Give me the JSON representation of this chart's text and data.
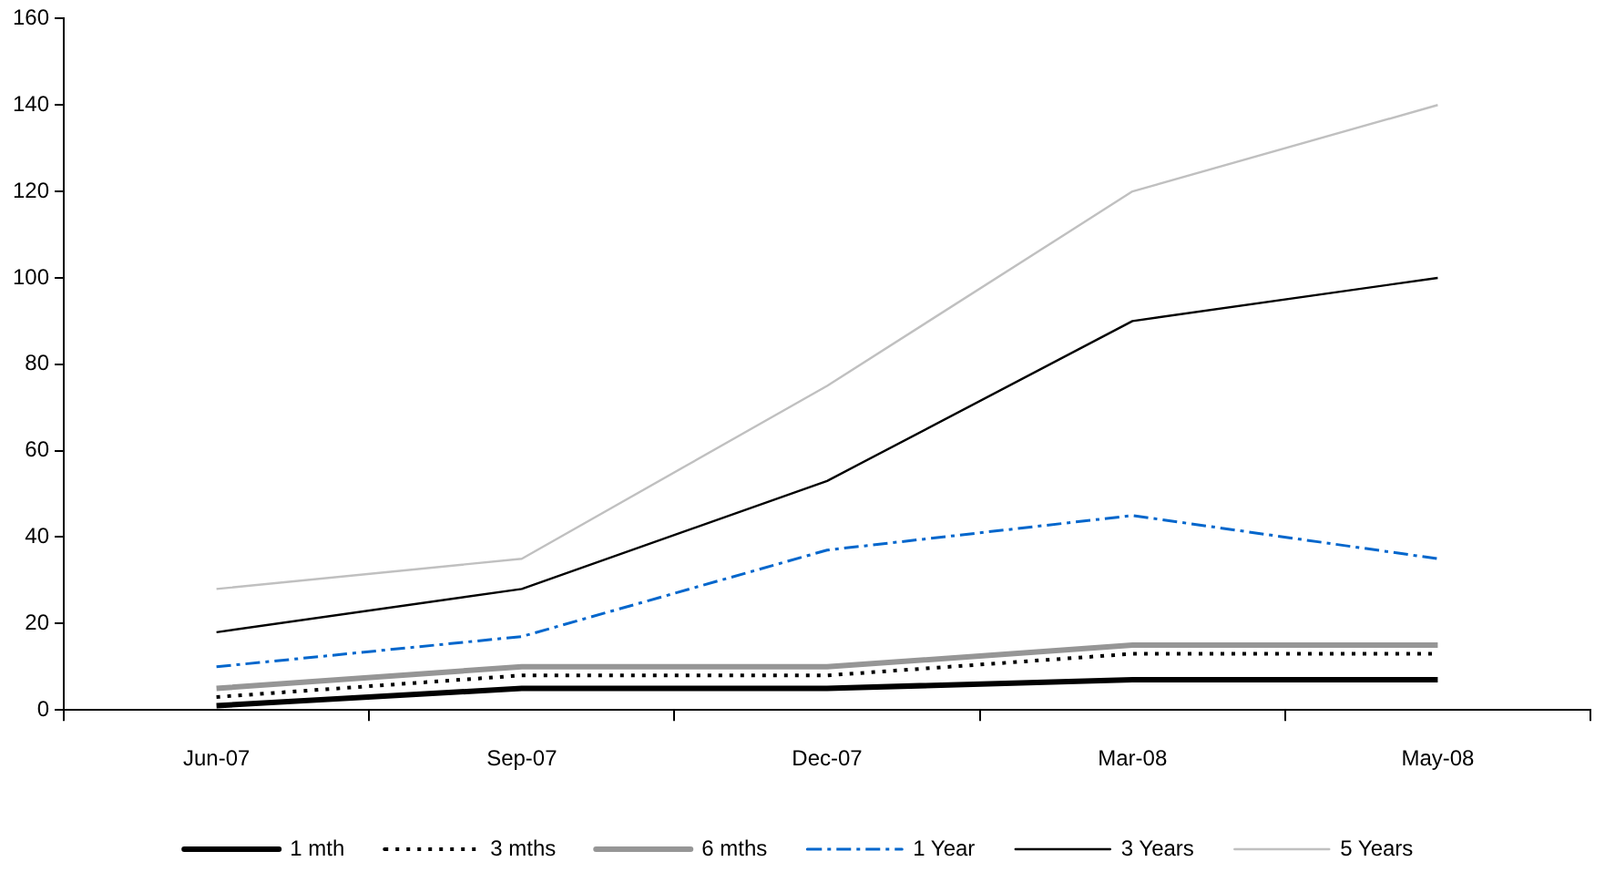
{
  "chart_data": {
    "type": "line",
    "categories": [
      "Jun-07",
      "Sep-07",
      "Dec-07",
      "Mar-08",
      "May-08"
    ],
    "series": [
      {
        "name": "1 mth",
        "color": "#000000",
        "line_style": "solid",
        "values": [
          1,
          5,
          5,
          7,
          7
        ]
      },
      {
        "name": "3 mths",
        "color": "#000000",
        "line_style": "dotted",
        "values": [
          3,
          8,
          8,
          13,
          13
        ]
      },
      {
        "name": "6 mths",
        "color": "#969696",
        "line_style": "solid",
        "values": [
          5,
          10,
          10,
          15,
          15
        ]
      },
      {
        "name": "1 Year",
        "color": "#0066cc",
        "line_style": "dashed",
        "values": [
          10,
          17,
          37,
          45,
          35
        ]
      },
      {
        "name": "3 Years",
        "color": "#000000",
        "line_style": "solid",
        "values": [
          18,
          28,
          53,
          90,
          100
        ]
      },
      {
        "name": "5 Years",
        "color": "#c0c0c0",
        "line_style": "solid",
        "values": [
          28,
          35,
          75,
          120,
          140
        ]
      }
    ],
    "ylim": [
      0,
      160
    ],
    "yticks": [
      0,
      20,
      40,
      60,
      80,
      100,
      120,
      140,
      160
    ],
    "grid": false,
    "legend": "bottom",
    "marker": "none"
  }
}
